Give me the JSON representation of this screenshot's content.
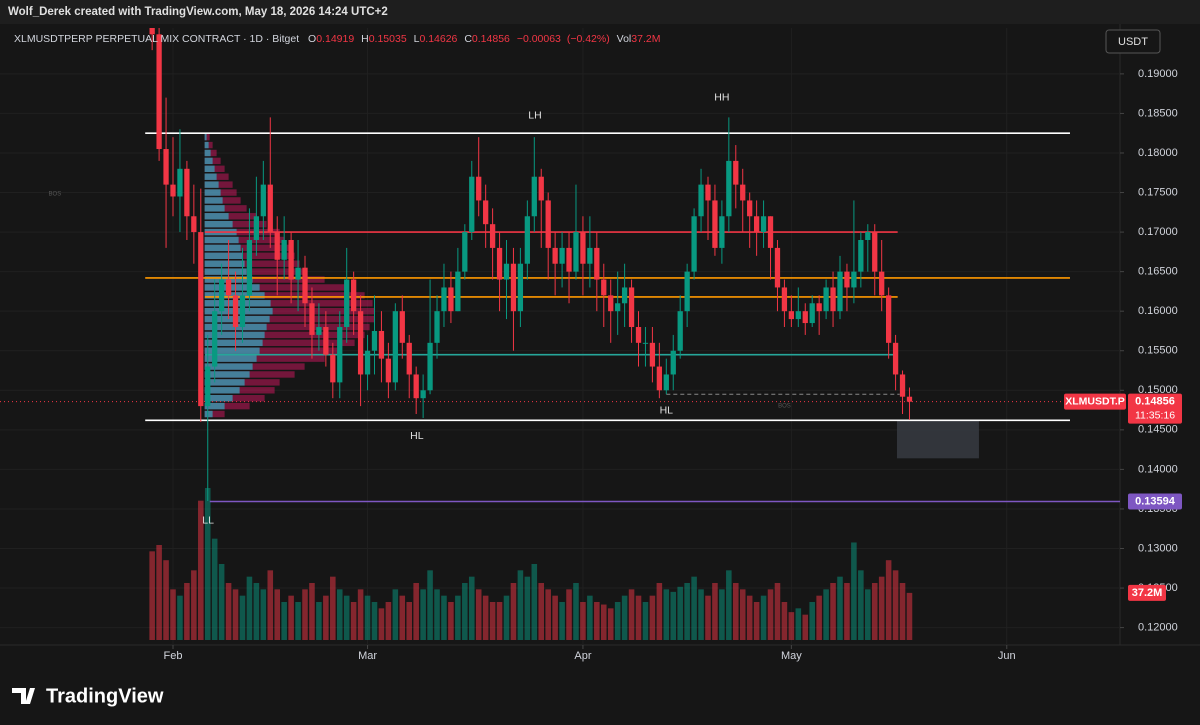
{
  "chart_data": {
    "type": "candlestick",
    "credit": "Wolf_Derek created with TradingView.com, May 18, 2026 14:24 UTC+2",
    "symbol_line": "XLMUSDTPERP PERPETUAL MIX CONTRACT · 1D · Bitget",
    "ohlc_letters": [
      "O",
      "H",
      "L",
      "C",
      "Vol"
    ],
    "change": {
      "value": -0.00063,
      "label": "−0.00063"
    },
    "change_pct": {
      "value": -0.42,
      "label": "(−0.42%)"
    },
    "volume_last_label": "37.2M",
    "currency_button": "USDT",
    "symbol_tag": "XLMUSDT.P",
    "countdown": "11:35:16",
    "brand": "TradingView",
    "up_color": "#089981",
    "down_color": "#f23645",
    "grid": true,
    "xlim": [
      -21.9,
      139.3
    ],
    "ylim": [
      0.1178,
      0.1958
    ],
    "volume_lim": [
      0,
      120
    ],
    "xticks": [
      {
        "value": 3,
        "label": "Feb"
      },
      {
        "value": 31,
        "label": "Mar"
      },
      {
        "value": 62,
        "label": "Apr"
      },
      {
        "value": 92,
        "label": "May"
      },
      {
        "value": 123,
        "label": "Jun"
      }
    ],
    "yticks": [
      {
        "value": 0.19,
        "label": "0.19000"
      },
      {
        "value": 0.185,
        "label": "0.18500"
      },
      {
        "value": 0.18,
        "label": "0.18000"
      },
      {
        "value": 0.175,
        "label": "0.17500"
      },
      {
        "value": 0.17,
        "label": "0.17000"
      },
      {
        "value": 0.165,
        "label": "0.16500"
      },
      {
        "value": 0.16,
        "label": "0.16000"
      },
      {
        "value": 0.155,
        "label": "0.15500"
      },
      {
        "value": 0.15,
        "label": "0.15000"
      },
      {
        "value": 0.145,
        "label": "0.14500"
      },
      {
        "value": 0.14,
        "label": "0.14000"
      },
      {
        "value": 0.135,
        "label": "0.13500"
      },
      {
        "value": 0.13,
        "label": "0.13000"
      },
      {
        "value": 0.125,
        "label": "0.12500"
      },
      {
        "value": 0.12,
        "label": "0.12000"
      }
    ],
    "open": [
      0.2,
      0.195,
      0.1805,
      0.176,
      0.1745,
      0.178,
      0.172,
      0.17,
      0.148,
      0.153,
      0.16,
      0.164,
      0.162,
      0.158,
      0.162,
      0.169,
      0.172,
      0.176,
      0.17,
      0.1665,
      0.169,
      0.164,
      0.1655,
      0.161,
      0.157,
      0.158,
      0.1545,
      0.151,
      0.158,
      0.164,
      0.16,
      0.152,
      0.155,
      0.1575,
      0.154,
      0.151,
      0.16,
      0.156,
      0.152,
      0.149,
      0.15,
      0.156,
      0.16,
      0.163,
      0.16,
      0.165,
      0.17,
      0.177,
      0.174,
      0.171,
      0.168,
      0.164,
      0.166,
      0.16,
      0.166,
      0.172,
      0.177,
      0.174,
      0.168,
      0.166,
      0.168,
      0.165,
      0.17,
      0.166,
      0.168,
      0.164,
      0.162,
      0.16,
      0.161,
      0.163,
      0.158,
      0.156,
      0.156,
      0.153,
      0.15,
      0.152,
      0.155,
      0.16,
      0.165,
      0.172,
      0.176,
      0.174,
      0.168,
      0.172,
      0.179,
      0.176,
      0.174,
      0.172,
      0.17,
      0.172,
      0.168,
      0.163,
      0.16,
      0.159,
      0.16,
      0.1585,
      0.161,
      0.16,
      0.163,
      0.16,
      0.165,
      0.163,
      0.165,
      0.169,
      0.17,
      0.165,
      0.162,
      0.156,
      0.152,
      0.14919
    ],
    "high": [
      0.203,
      0.198,
      0.187,
      0.182,
      0.183,
      0.179,
      0.176,
      0.1755,
      0.157,
      0.164,
      0.166,
      0.169,
      0.165,
      0.168,
      0.173,
      0.177,
      0.179,
      0.1845,
      0.172,
      0.172,
      0.17,
      0.169,
      0.167,
      0.163,
      0.161,
      0.16,
      0.156,
      0.16,
      0.168,
      0.165,
      0.162,
      0.157,
      0.162,
      0.16,
      0.156,
      0.161,
      0.162,
      0.157,
      0.153,
      0.152,
      0.164,
      0.162,
      0.166,
      0.165,
      0.168,
      0.171,
      0.179,
      0.182,
      0.176,
      0.173,
      0.17,
      0.169,
      0.168,
      0.168,
      0.174,
      0.182,
      0.178,
      0.175,
      0.17,
      0.17,
      0.17,
      0.176,
      0.172,
      0.172,
      0.17,
      0.166,
      0.164,
      0.165,
      0.166,
      0.164,
      0.16,
      0.158,
      0.158,
      0.156,
      0.154,
      0.157,
      0.162,
      0.166,
      0.173,
      0.178,
      0.177,
      0.176,
      0.174,
      0.1845,
      0.181,
      0.178,
      0.175,
      0.174,
      0.174,
      0.172,
      0.169,
      0.164,
      0.162,
      0.163,
      0.161,
      0.162,
      0.162,
      0.164,
      0.165,
      0.167,
      0.166,
      0.174,
      0.17,
      0.171,
      0.171,
      0.169,
      0.163,
      0.157,
      0.1525,
      0.15035
    ],
    "low": [
      0.193,
      0.179,
      0.168,
      0.172,
      0.17,
      0.169,
      0.166,
      0.146,
      0.136,
      0.151,
      0.157,
      0.159,
      0.155,
      0.156,
      0.16,
      0.167,
      0.169,
      0.168,
      0.162,
      0.164,
      0.161,
      0.16,
      0.158,
      0.154,
      0.155,
      0.153,
      0.149,
      0.149,
      0.156,
      0.157,
      0.148,
      0.15,
      0.152,
      0.151,
      0.149,
      0.15,
      0.154,
      0.149,
      0.147,
      0.1465,
      0.1495,
      0.154,
      0.158,
      0.1585,
      0.16,
      0.164,
      0.169,
      0.172,
      0.168,
      0.164,
      0.16,
      0.159,
      0.155,
      0.158,
      0.164,
      0.17,
      0.168,
      0.164,
      0.162,
      0.163,
      0.161,
      0.164,
      0.162,
      0.163,
      0.16,
      0.158,
      0.156,
      0.157,
      0.158,
      0.156,
      0.153,
      0.153,
      0.151,
      0.149,
      0.1495,
      0.15,
      0.154,
      0.158,
      0.164,
      0.17,
      0.169,
      0.167,
      0.166,
      0.17,
      0.173,
      0.17,
      0.168,
      0.167,
      0.168,
      0.164,
      0.16,
      0.158,
      0.158,
      0.158,
      0.157,
      0.158,
      0.157,
      0.159,
      0.158,
      0.159,
      0.16,
      0.161,
      0.163,
      0.165,
      0.162,
      0.16,
      0.154,
      0.15,
      0.147,
      0.14626
    ],
    "close": [
      0.195,
      0.1805,
      0.176,
      0.1745,
      0.178,
      0.172,
      0.17,
      0.148,
      0.153,
      0.16,
      0.164,
      0.162,
      0.158,
      0.162,
      0.169,
      0.172,
      0.176,
      0.17,
      0.1665,
      0.169,
      0.164,
      0.1655,
      0.161,
      0.157,
      0.158,
      0.1545,
      0.151,
      0.158,
      0.164,
      0.16,
      0.152,
      0.155,
      0.1575,
      0.154,
      0.151,
      0.16,
      0.156,
      0.152,
      0.149,
      0.15,
      0.156,
      0.16,
      0.163,
      0.16,
      0.165,
      0.17,
      0.177,
      0.174,
      0.171,
      0.168,
      0.164,
      0.166,
      0.16,
      0.166,
      0.172,
      0.177,
      0.174,
      0.168,
      0.166,
      0.168,
      0.165,
      0.17,
      0.166,
      0.168,
      0.164,
      0.162,
      0.16,
      0.161,
      0.163,
      0.158,
      0.156,
      0.156,
      0.153,
      0.15,
      0.152,
      0.155,
      0.16,
      0.165,
      0.172,
      0.176,
      0.174,
      0.168,
      0.172,
      0.179,
      0.176,
      0.174,
      0.172,
      0.17,
      0.172,
      0.168,
      0.163,
      0.16,
      0.159,
      0.16,
      0.1585,
      0.161,
      0.16,
      0.163,
      0.16,
      0.165,
      0.163,
      0.165,
      0.169,
      0.17,
      0.165,
      0.162,
      0.156,
      0.152,
      0.14919,
      0.14856
    ],
    "volume": [
      70,
      75,
      63,
      40,
      35,
      45,
      55,
      110,
      120,
      80,
      60,
      45,
      40,
      35,
      50,
      45,
      40,
      55,
      40,
      30,
      35,
      30,
      40,
      45,
      30,
      35,
      50,
      40,
      35,
      30,
      40,
      35,
      30,
      25,
      30,
      40,
      35,
      30,
      45,
      40,
      55,
      40,
      35,
      30,
      35,
      45,
      50,
      40,
      35,
      30,
      30,
      35,
      45,
      55,
      50,
      60,
      45,
      40,
      35,
      30,
      40,
      45,
      30,
      35,
      30,
      28,
      25,
      30,
      35,
      40,
      35,
      30,
      35,
      45,
      40,
      38,
      42,
      45,
      50,
      40,
      35,
      45,
      40,
      55,
      45,
      40,
      35,
      30,
      35,
      40,
      45,
      30,
      22,
      25,
      20,
      30,
      35,
      40,
      45,
      50,
      45,
      77,
      55,
      40,
      45,
      50,
      63,
      55,
      45,
      37.2
    ],
    "levels": [
      {
        "value": 0.1825,
        "color": "#ffffff",
        "from": -1,
        "to": 132.1
      },
      {
        "value": 0.1462,
        "color": "#ffffff",
        "from": -1,
        "to": 132.1
      },
      {
        "value": 0.17,
        "color": "#f23645",
        "from": 7.6,
        "to": 107.3
      },
      {
        "value": 0.1642,
        "color": "#ff9800",
        "from": -1,
        "to": 132.1
      },
      {
        "value": 0.1618,
        "color": "#ff9800",
        "from": 7.6,
        "to": 107.3
      },
      {
        "value": 0.1545,
        "color": "#26a69a",
        "from": 7.6,
        "to": 107.3
      },
      {
        "value": 0.13594,
        "color": "#7e57c2",
        "from": 8.3,
        "to": 139.3
      }
    ],
    "dashed_level": {
      "value": 0.1495,
      "from": 74,
      "to": 107.6
    },
    "zone": {
      "from": 107.2,
      "to": 119,
      "top": 0.1462,
      "bottom": 0.1414
    },
    "annotations": [
      {
        "text": "LH",
        "x": 55.1,
        "y": 0.1847
      },
      {
        "text": "HH",
        "x": 82,
        "y": 0.187
      },
      {
        "text": "HL",
        "x": 38.1,
        "y": 0.1442
      },
      {
        "text": "HL",
        "x": 74,
        "y": 0.1474
      },
      {
        "text": "LL",
        "x": 8.05,
        "y": 0.1335
      },
      {
        "text": "BOS",
        "x": 91,
        "y": 0.148
      },
      {
        "text": "BOS",
        "x": -14,
        "y": 0.1748
      }
    ],
    "volume_profile": {
      "levels": [
        0.147,
        0.148,
        0.149,
        0.15,
        0.151,
        0.152,
        0.153,
        0.154,
        0.155,
        0.156,
        0.157,
        0.158,
        0.159,
        0.16,
        0.161,
        0.162,
        0.163,
        0.164,
        0.165,
        0.166,
        0.167,
        0.168,
        0.169,
        0.17,
        0.171,
        0.172,
        0.173,
        0.174,
        0.175,
        0.176,
        0.177,
        0.178,
        0.179,
        0.18,
        0.181,
        0.182
      ],
      "total": [
        20,
        45,
        60,
        70,
        75,
        90,
        100,
        120,
        135,
        150,
        160,
        165,
        170,
        170,
        168,
        160,
        140,
        120,
        100,
        95,
        90,
        85,
        80,
        75,
        62,
        52,
        42,
        36,
        32,
        28,
        24,
        20,
        16,
        12,
        8,
        5
      ],
      "up": [
        8,
        20,
        28,
        35,
        40,
        45,
        48,
        52,
        55,
        58,
        60,
        62,
        65,
        68,
        66,
        60,
        55,
        48,
        42,
        40,
        38,
        36,
        34,
        32,
        28,
        24,
        20,
        18,
        16,
        14,
        12,
        10,
        8,
        6,
        4,
        2
      ]
    }
  }
}
